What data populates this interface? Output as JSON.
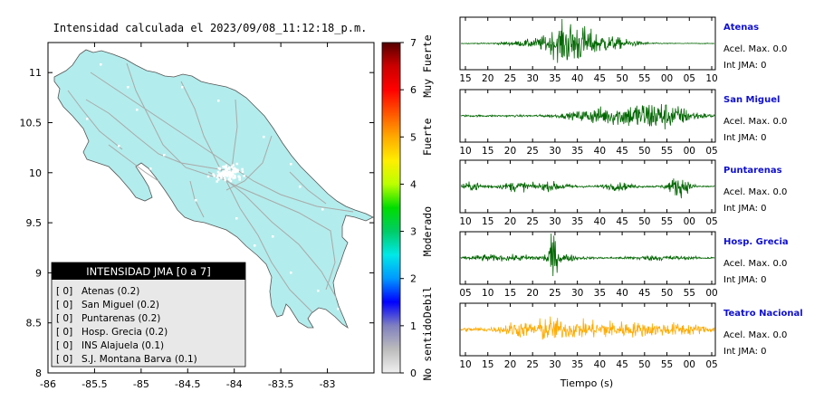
{
  "map": {
    "title": "Intensidad calculada el 2023/09/08_11:12:18_p.m.",
    "land_color": "#b3ecec",
    "road_color": "#a9a9a9",
    "station_color": "#ffffff",
    "lon_ticks": [
      -86,
      -85.5,
      -85,
      -84.5,
      -84,
      -83.5,
      -83
    ],
    "lat_ticks": [
      8,
      8.5,
      9,
      9.5,
      10,
      10.5,
      11
    ],
    "xlim": [
      -86,
      -82.5
    ],
    "ylim": [
      8,
      11.3
    ]
  },
  "legend": {
    "title": "INTENSIDAD JMA [0 a 7]",
    "items": [
      {
        "value": "[ 0]",
        "label": "Atenas (0.2)"
      },
      {
        "value": "[ 0]",
        "label": "San Miguel (0.2)"
      },
      {
        "value": "[ 0]",
        "label": "Puntarenas (0.2)"
      },
      {
        "value": "[ 0]",
        "label": "Hosp. Grecia (0.2)"
      },
      {
        "value": "[ 0]",
        "label": "INS Alajuela (0.1)"
      },
      {
        "value": "[ 0]",
        "label": "S.J. Montana Barva (0.1)"
      }
    ]
  },
  "colorbar": {
    "ticks": [
      "0",
      "1",
      "2",
      "3",
      "4",
      "5",
      "6",
      "7"
    ],
    "categories": [
      "No sentido",
      "Debil",
      "Moderado",
      "Fuerte",
      "Muy Fuerte"
    ],
    "stops": [
      "#f0f0f0",
      "#bcbcbc",
      "#8080c0",
      "#0000ff",
      "#0098ff",
      "#00e8e8",
      "#00cc66",
      "#00dd00",
      "#bbff00",
      "#ffee00",
      "#ffaa00",
      "#ff5500",
      "#ff0000",
      "#cc0000",
      "#550000"
    ]
  },
  "chart_data": {
    "type": "line",
    "xlabel": "Tiempo (s)",
    "waveforms": [
      {
        "name": "Atenas",
        "acel_label": "Acel. Max. 0.0",
        "int_label": "Int JMA: 0",
        "color": "#006600",
        "x_ticks": [
          "15",
          "20",
          "25",
          "30",
          "35",
          "40",
          "45",
          "50",
          "55",
          "00",
          "05",
          "10"
        ]
      },
      {
        "name": "San Miguel",
        "acel_label": "Acel. Max. 0.0",
        "int_label": "Int JMA: 0",
        "color": "#006600",
        "x_ticks": [
          "10",
          "15",
          "20",
          "25",
          "30",
          "35",
          "40",
          "45",
          "50",
          "55",
          "00",
          "05"
        ]
      },
      {
        "name": "Puntarenas",
        "acel_label": "Acel. Max. 0.0",
        "int_label": "Int JMA: 0",
        "color": "#006600",
        "x_ticks": [
          "10",
          "15",
          "20",
          "25",
          "30",
          "35",
          "40",
          "45",
          "50",
          "55",
          "00",
          "05"
        ]
      },
      {
        "name": "Hosp. Grecia",
        "acel_label": "Acel. Max. 0.0",
        "int_label": "Int JMA: 0",
        "color": "#006600",
        "x_ticks": [
          "05",
          "10",
          "15",
          "20",
          "25",
          "30",
          "35",
          "40",
          "45",
          "50",
          "55",
          "00"
        ]
      },
      {
        "name": "Teatro Nacional",
        "acel_label": "Acel. Max. 0.0",
        "int_label": "Int JMA: 0",
        "color": "#ffaa00",
        "x_ticks": [
          "10",
          "15",
          "20",
          "25",
          "30",
          "35",
          "40",
          "45",
          "50",
          "55",
          "00",
          "05"
        ]
      }
    ]
  }
}
